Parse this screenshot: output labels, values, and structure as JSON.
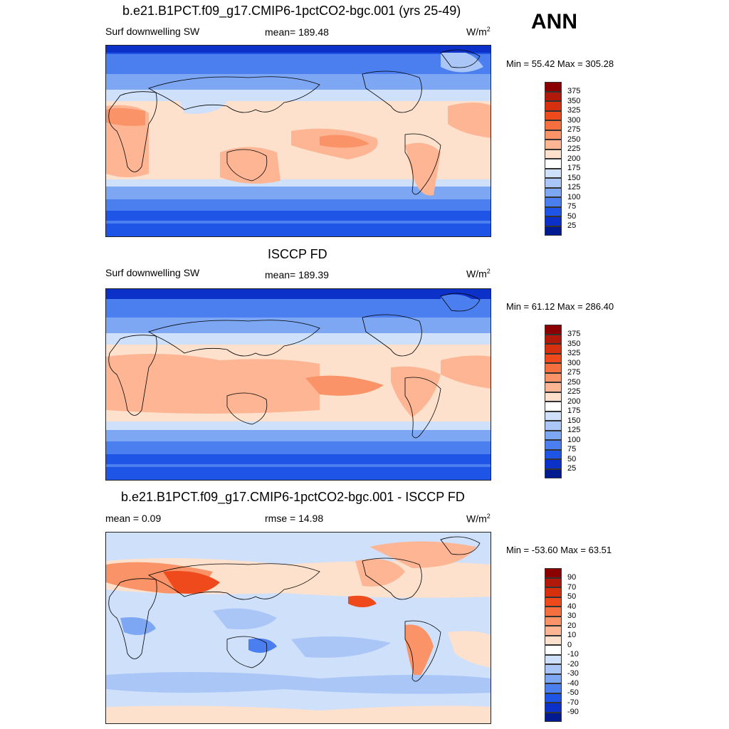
{
  "season": "ANN",
  "panels": [
    {
      "title": "b.e21.B1PCT.f09_g17.CMIP6-1pctCO2-bgc.001 (yrs 25-49)",
      "left_label": "Surf downwelling SW",
      "center_label": "mean= 189.48",
      "units": "W/m",
      "units_sup": "2",
      "minmax": "Min =  55.42 Max = 305.28"
    },
    {
      "title": "ISCCP FD",
      "left_label": "Surf downwelling SW",
      "center_label": "mean= 189.39",
      "units": "W/m",
      "units_sup": "2",
      "minmax": "Min =  61.12 Max = 286.40"
    },
    {
      "title": "b.e21.B1PCT.f09_g17.CMIP6-1pctCO2-bgc.001 - ISCCP FD",
      "left_label": "mean =   0.09",
      "center_label": "rmse =  14.98",
      "units": "W/m",
      "units_sup": "2",
      "minmax": "Min = -53.60 Max =  63.51"
    }
  ],
  "colorbars": {
    "absolute": {
      "labels": [
        "375",
        "350",
        "325",
        "300",
        "275",
        "250",
        "225",
        "200",
        "175",
        "150",
        "125",
        "100",
        "75",
        "50",
        "25"
      ],
      "colors": [
        "#8b0000",
        "#b11a0a",
        "#d7300f",
        "#ee4a1c",
        "#f66f3f",
        "#fa9468",
        "#fdb594",
        "#fde1cc",
        "#ffffff",
        "#cfe0fb",
        "#a9c6f7",
        "#7ea7f3",
        "#4b7ff0",
        "#1f55e6",
        "#0c31c8",
        "#001b8f"
      ]
    },
    "difference": {
      "labels": [
        "90",
        "70",
        "50",
        "40",
        "30",
        "20",
        "10",
        "0",
        "-10",
        "-20",
        "-30",
        "-40",
        "-50",
        "-70",
        "-90"
      ],
      "colors": [
        "#8b0000",
        "#b11a0a",
        "#d7300f",
        "#ee4a1c",
        "#f66f3f",
        "#fa9468",
        "#fdb594",
        "#fde1cc",
        "#ffffff",
        "#cfe0fb",
        "#a9c6f7",
        "#7ea7f3",
        "#4b7ff0",
        "#1f55e6",
        "#0c31c8",
        "#001b8f"
      ]
    }
  }
}
